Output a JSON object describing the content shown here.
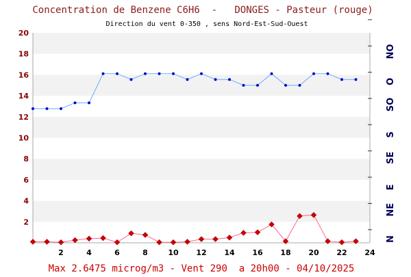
{
  "chart_data": {
    "type": "line",
    "title": "Concentration de Benzene C6H6  -   DONGES - Pasteur (rouge)",
    "subtitle": "Direction du vent 0-350 , sens Nord-Est-Sud-Ouest",
    "footer": "Max 2.6475 microg/m3 - Vent 290  a 20h00 - 04/10/2025",
    "xlim": [
      0,
      24
    ],
    "ylim": [
      0,
      20
    ],
    "x_ticks": [
      "2",
      "4",
      "6",
      "8",
      "10",
      "12",
      "14",
      "16",
      "18",
      "20",
      "22",
      "24"
    ],
    "y_ticks": [
      "2",
      "4",
      "6",
      "8",
      "10",
      "12",
      "14",
      "16",
      "18",
      "20"
    ],
    "right_axis_labels": [
      "N",
      "NE",
      "E",
      "SE",
      "S",
      "SO",
      "O",
      "NO"
    ],
    "right_axis_range": [
      0,
      360
    ],
    "grid": "horizontal bands",
    "series": [
      {
        "color": "#cc0000",
        "line_color": "#ff6688",
        "marker": "diamond",
        "axis": "left",
        "x": [
          0,
          1,
          2,
          3,
          4,
          5,
          6,
          7,
          8,
          9,
          10,
          11,
          12,
          13,
          14,
          15,
          16,
          17,
          18,
          19,
          20,
          21,
          22,
          23
        ],
        "values": [
          0.1,
          0.1,
          0.05,
          0.25,
          0.4,
          0.45,
          0.05,
          0.9,
          0.75,
          0.05,
          0.05,
          0.1,
          0.35,
          0.35,
          0.5,
          0.95,
          1.0,
          1.75,
          0.15,
          2.55,
          2.65,
          0.15,
          0.05,
          0.15
        ]
      },
      {
        "color": "#0000cc",
        "line_color": "#66aaff",
        "marker": "dot",
        "axis": "right",
        "x": [
          0,
          1,
          2,
          3,
          4,
          5,
          6,
          7,
          8,
          9,
          10,
          11,
          12,
          13,
          14,
          15,
          16,
          17,
          18,
          19,
          20,
          21,
          22,
          23
        ],
        "values": [
          230,
          230,
          230,
          240,
          240,
          290,
          290,
          280,
          290,
          290,
          290,
          280,
          290,
          280,
          280,
          270,
          270,
          290,
          270,
          270,
          290,
          290,
          280,
          280
        ]
      }
    ]
  }
}
